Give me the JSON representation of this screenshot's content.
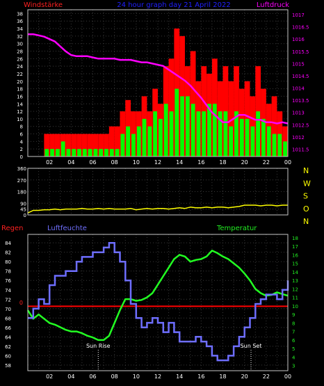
{
  "colors": {
    "background": "#000000",
    "grid": "#3a3a3a",
    "axis_box": "#c8c8c8",
    "tick_text": "#ffffff",
    "wind_gust": "#ff0000",
    "wind_mean": "#00ff00",
    "pressure": "#ff00ff",
    "pressure_axis": "#ff00ff",
    "direction": "#ffff00",
    "rain": "#ff0000",
    "humidity": "#6e6eff",
    "temperature": "#22ff22",
    "header_left": "#ff2020",
    "header_center": "#2020ff",
    "header_right": "#ff00ff",
    "dir_letters": "#ffff00",
    "rain_label": "#ff2020",
    "hum_label": "#7070ff",
    "temp_label": "#22ee22",
    "sun_text": "#ffffff"
  },
  "chart_data": [
    {
      "type": "bar",
      "title": "24 hour graph day  21 April 2022",
      "left_label": "Windstärke",
      "right_label": "Luftdruck",
      "x_ticks": [
        "02",
        "04",
        "06",
        "08",
        "10",
        "12",
        "14",
        "16",
        "18",
        "20",
        "22",
        "00"
      ],
      "x_hours": [
        0,
        24
      ],
      "y_left_ticks": [
        "0",
        "2",
        "4",
        "6",
        "8",
        "10",
        "12",
        "14",
        "16",
        "18",
        "20",
        "22",
        "24",
        "26",
        "28",
        "30",
        "32",
        "34",
        "36",
        "38"
      ],
      "y_left_range": [
        0,
        39
      ],
      "y_right_ticks": [
        "1011.5",
        "1012",
        "1012.5",
        "1013",
        "1013.5",
        "1014",
        "1014.5",
        "1015",
        "1015.5",
        "1016",
        "1016.5",
        "1017"
      ],
      "y_right_range": [
        1011.2,
        1017.2
      ],
      "grid": true,
      "series": [
        {
          "name": "gust",
          "kind": "bar",
          "x": [
            0.0,
            0.5,
            1.0,
            1.5,
            2.0,
            2.5,
            3.0,
            3.5,
            4.0,
            4.5,
            5.0,
            5.5,
            6.0,
            6.5,
            7.0,
            7.5,
            8.0,
            8.5,
            9.0,
            9.5,
            10.0,
            10.5,
            11.0,
            11.5,
            12.0,
            12.5,
            13.0,
            13.5,
            14.0,
            14.5,
            15.0,
            15.5,
            16.0,
            16.5,
            17.0,
            17.5,
            18.0,
            18.5,
            19.0,
            19.5,
            20.0,
            20.5,
            21.0,
            21.5,
            22.0,
            22.5,
            23.0,
            23.5
          ],
          "values": [
            0,
            0,
            0,
            6,
            6,
            6,
            6,
            6,
            6,
            6,
            6,
            6,
            6,
            6,
            6,
            8,
            8,
            12,
            15,
            12,
            12,
            16,
            12,
            18,
            14,
            24,
            26,
            34,
            32,
            24,
            28,
            20,
            24,
            22,
            26,
            20,
            24,
            20,
            24,
            18,
            20,
            16,
            24,
            18,
            14,
            16,
            12,
            8
          ]
        },
        {
          "name": "mean",
          "kind": "bar",
          "x": [
            0.0,
            0.5,
            1.0,
            1.5,
            2.0,
            2.5,
            3.0,
            3.5,
            4.0,
            4.5,
            5.0,
            5.5,
            6.0,
            6.5,
            7.0,
            7.5,
            8.0,
            8.5,
            9.0,
            9.5,
            10.0,
            10.5,
            11.0,
            11.5,
            12.0,
            12.5,
            13.0,
            13.5,
            14.0,
            14.5,
            15.0,
            15.5,
            16.0,
            16.5,
            17.0,
            17.5,
            18.0,
            18.5,
            19.0,
            19.5,
            20.0,
            20.5,
            21.0,
            21.5,
            22.0,
            22.5,
            23.0,
            23.5
          ],
          "values": [
            0,
            0,
            0,
            2,
            2,
            2,
            4,
            2,
            2,
            2,
            2,
            2,
            2,
            2,
            2,
            2,
            2,
            6,
            8,
            6,
            8,
            10,
            8,
            12,
            10,
            14,
            12,
            18,
            16,
            16,
            14,
            12,
            12,
            14,
            14,
            12,
            12,
            8,
            12,
            10,
            10,
            8,
            12,
            10,
            8,
            6,
            6,
            4
          ]
        },
        {
          "name": "pressure",
          "kind": "line",
          "axis": "right",
          "x": [
            0.0,
            0.5,
            1.0,
            1.5,
            2.0,
            2.5,
            3.0,
            3.5,
            4.0,
            4.5,
            5.0,
            5.5,
            6.0,
            6.5,
            7.0,
            7.5,
            8.0,
            8.5,
            9.0,
            9.5,
            10.0,
            10.5,
            11.0,
            11.5,
            12.0,
            12.5,
            13.0,
            13.5,
            14.0,
            14.5,
            15.0,
            15.5,
            16.0,
            16.5,
            17.0,
            17.5,
            18.0,
            18.5,
            19.0,
            19.5,
            20.0,
            20.5,
            21.0,
            21.5,
            22.0,
            22.5,
            23.0,
            23.5,
            24.0
          ],
          "values": [
            1016.2,
            1016.2,
            1016.15,
            1016.1,
            1016.0,
            1015.9,
            1015.7,
            1015.5,
            1015.35,
            1015.3,
            1015.3,
            1015.3,
            1015.25,
            1015.2,
            1015.2,
            1015.2,
            1015.2,
            1015.15,
            1015.15,
            1015.15,
            1015.1,
            1015.05,
            1015.05,
            1015.0,
            1014.95,
            1014.9,
            1014.75,
            1014.6,
            1014.45,
            1014.3,
            1014.1,
            1013.85,
            1013.6,
            1013.3,
            1013.0,
            1012.8,
            1012.6,
            1012.6,
            1012.75,
            1012.9,
            1012.9,
            1012.8,
            1012.7,
            1012.7,
            1012.6,
            1012.6,
            1012.55,
            1012.6,
            1012.55
          ]
        }
      ]
    },
    {
      "type": "line",
      "title": "",
      "x_ticks": [
        "02",
        "04",
        "06",
        "08",
        "10",
        "12",
        "14",
        "16",
        "18",
        "20",
        "22",
        "00"
      ],
      "y_ticks": [
        "0",
        "45",
        "90",
        "180",
        "270",
        "360"
      ],
      "y_tick_values": [
        0,
        45,
        90,
        180,
        270,
        360
      ],
      "y_range": [
        0,
        360
      ],
      "direction_letters": [
        "N",
        "W",
        "S",
        "O",
        "N"
      ],
      "grid": true,
      "series": [
        {
          "name": "direction",
          "x": [
            0.0,
            0.5,
            1.0,
            1.5,
            2.0,
            2.5,
            3.0,
            3.5,
            4.0,
            4.5,
            5.0,
            5.5,
            6.0,
            6.5,
            7.0,
            7.5,
            8.0,
            8.5,
            9.0,
            9.5,
            10.0,
            10.5,
            11.0,
            11.5,
            12.0,
            12.5,
            13.0,
            13.5,
            14.0,
            14.5,
            15.0,
            15.5,
            16.0,
            16.5,
            17.0,
            17.5,
            18.0,
            18.5,
            19.0,
            19.5,
            20.0,
            20.5,
            21.0,
            21.5,
            22.0,
            22.5,
            23.0,
            23.5,
            24.0
          ],
          "values": [
            15,
            35,
            35,
            40,
            40,
            45,
            40,
            45,
            45,
            45,
            50,
            45,
            45,
            50,
            45,
            50,
            45,
            45,
            45,
            50,
            40,
            45,
            50,
            45,
            50,
            50,
            45,
            50,
            55,
            50,
            60,
            55,
            55,
            60,
            55,
            60,
            60,
            55,
            60,
            65,
            75,
            75,
            75,
            70,
            75,
            75,
            70,
            75,
            75
          ]
        }
      ]
    },
    {
      "type": "line",
      "title": "",
      "left_label": "Regen",
      "center_label": "Luftfeuchte",
      "right_label": "Temperatur",
      "rain_zero_label": "0",
      "x_ticks": [
        "02",
        "04",
        "06",
        "08",
        "10",
        "12",
        "14",
        "16",
        "18",
        "20",
        "22",
        "00"
      ],
      "y_left_ticks": [
        "58",
        "60",
        "62",
        "64",
        "66",
        "68",
        "70",
        "72",
        "74",
        "76",
        "78",
        "80",
        "82",
        "84"
      ],
      "y_left_range": [
        56.8,
        85.8
      ],
      "y_right_ticks": [
        "3",
        "4",
        "5",
        "6",
        "7",
        "8",
        "9",
        "10",
        "11",
        "12",
        "13",
        "14",
        "15",
        "16",
        "17",
        "18"
      ],
      "y_right_range": [
        2.4,
        18.4
      ],
      "sun_rise_label": "Sun Rise",
      "sun_rise_hour": 6.5,
      "sun_set_label": "Sun Set",
      "sun_set_hour": 20.6,
      "grid": true,
      "series": [
        {
          "name": "humidity",
          "axis": "left",
          "x": [
            0.0,
            0.5,
            1.0,
            1.5,
            2.0,
            2.5,
            3.0,
            3.5,
            4.0,
            4.5,
            5.0,
            5.5,
            6.0,
            6.5,
            7.0,
            7.5,
            8.0,
            8.5,
            9.0,
            9.5,
            10.0,
            10.5,
            11.0,
            11.5,
            12.0,
            12.5,
            13.0,
            13.5,
            14.0,
            14.5,
            15.0,
            15.5,
            16.0,
            16.5,
            17.0,
            17.5,
            18.0,
            18.5,
            19.0,
            19.5,
            20.0,
            20.5,
            21.0,
            21.5,
            22.0,
            22.5,
            23.0,
            23.5,
            24.0
          ],
          "values": [
            68,
            70,
            72,
            71,
            75,
            77,
            77,
            78,
            78,
            80,
            81,
            81,
            82,
            82,
            83,
            84,
            82,
            80,
            76,
            71,
            68,
            66,
            67,
            68,
            67,
            65,
            67,
            65,
            63,
            63,
            63,
            64,
            63,
            62,
            60,
            59,
            59,
            60,
            62,
            64,
            66,
            68,
            71,
            72,
            73,
            73,
            72,
            74,
            76
          ]
        },
        {
          "name": "temperature",
          "axis": "right",
          "x": [
            0.0,
            0.5,
            1.0,
            1.5,
            2.0,
            2.5,
            3.0,
            3.5,
            4.0,
            4.5,
            5.0,
            5.5,
            6.0,
            6.5,
            7.0,
            7.5,
            8.0,
            8.5,
            9.0,
            9.5,
            10.0,
            10.5,
            11.0,
            11.5,
            12.0,
            12.5,
            13.0,
            13.5,
            14.0,
            14.5,
            15.0,
            15.5,
            16.0,
            16.5,
            17.0,
            17.5,
            18.0,
            18.5,
            19.0,
            19.5,
            20.0,
            20.5,
            21.0,
            21.5,
            22.0,
            22.5,
            23.0,
            23.5,
            24.0
          ],
          "values": [
            9.5,
            8.5,
            9.0,
            8.5,
            8.0,
            7.8,
            7.5,
            7.2,
            7.0,
            7.0,
            6.8,
            6.5,
            6.3,
            6.0,
            6.0,
            6.5,
            8.0,
            9.5,
            10.8,
            10.8,
            10.6,
            10.7,
            11.0,
            11.5,
            12.5,
            13.5,
            14.5,
            15.5,
            16.0,
            15.8,
            15.2,
            15.4,
            15.5,
            15.8,
            16.5,
            16.2,
            15.8,
            15.5,
            15.0,
            14.5,
            13.8,
            13.0,
            12.0,
            11.5,
            11.2,
            11.3,
            11.6,
            11.4,
            11.2
          ]
        },
        {
          "name": "rain",
          "axis": "left",
          "x": [
            0,
            24
          ],
          "values": [
            70.5,
            70.5
          ]
        }
      ]
    }
  ]
}
